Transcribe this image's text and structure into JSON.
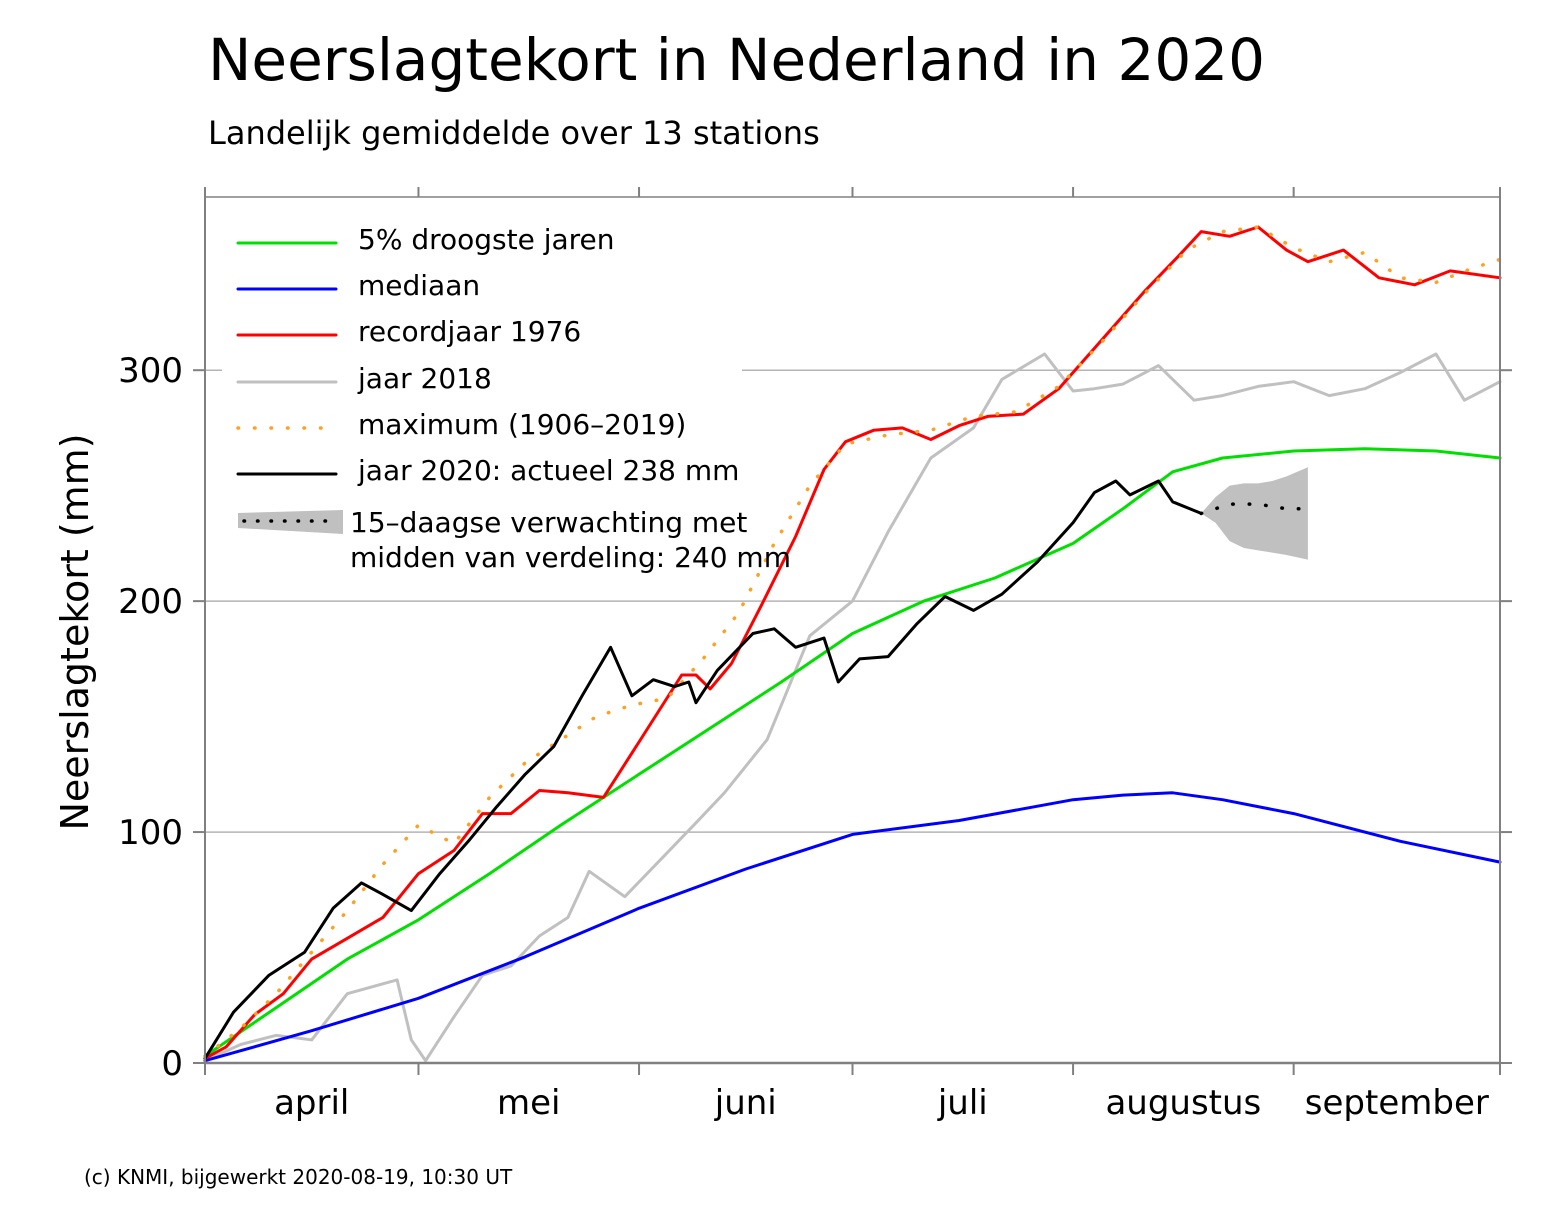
{
  "chart_data": {
    "type": "line",
    "title": "Neerslagtekort in Nederland in 2020",
    "subtitle": "Landelijk gemiddelde over 13 stations",
    "ylabel": "Neerslagtekort (mm)",
    "xlabel": "",
    "ylim": [
      0,
      375
    ],
    "xlim": [
      "2020-04-01",
      "2020-09-30"
    ],
    "yticks": [
      0,
      100,
      200,
      300
    ],
    "month_labels": [
      "april",
      "mei",
      "juni",
      "juli",
      "augustus",
      "september"
    ],
    "month_boundaries": [
      "2020-04-01",
      "2020-05-01",
      "2020-06-01",
      "2020-07-01",
      "2020-08-01",
      "2020-09-01"
    ],
    "grid": "horizontal",
    "legend_position": "top-left",
    "footer": "(c) KNMI, bijgewerkt 2020-08-19, 10:30 UT",
    "series": [
      {
        "name": "5% droogste jaren",
        "color": "#00e000",
        "style": "solid",
        "x": [
          "2020-04-01",
          "2020-04-11",
          "2020-04-21",
          "2020-05-01",
          "2020-05-11",
          "2020-05-21",
          "2020-06-01",
          "2020-06-11",
          "2020-06-21",
          "2020-07-01",
          "2020-07-11",
          "2020-07-21",
          "2020-08-01",
          "2020-08-08",
          "2020-08-15",
          "2020-08-22",
          "2020-09-01",
          "2020-09-11",
          "2020-09-21",
          "2020-09-30"
        ],
        "values": [
          3,
          24,
          45,
          62,
          82,
          103,
          125,
          145,
          165,
          186,
          200,
          210,
          225,
          240,
          256,
          262,
          265,
          266,
          265,
          262
        ]
      },
      {
        "name": "mediaan",
        "color": "#0000ff",
        "style": "solid",
        "x": [
          "2020-04-01",
          "2020-04-16",
          "2020-05-01",
          "2020-05-16",
          "2020-06-01",
          "2020-06-16",
          "2020-07-01",
          "2020-07-16",
          "2020-08-01",
          "2020-08-08",
          "2020-08-15",
          "2020-08-22",
          "2020-09-01",
          "2020-09-16",
          "2020-09-30"
        ],
        "values": [
          1,
          14,
          28,
          46,
          67,
          84,
          99,
          105,
          114,
          116,
          117,
          114,
          108,
          96,
          87
        ]
      },
      {
        "name": "recordjaar 1976",
        "color": "#ff0000",
        "style": "solid",
        "x": [
          "2020-04-01",
          "2020-04-04",
          "2020-04-08",
          "2020-04-12",
          "2020-04-16",
          "2020-04-21",
          "2020-04-26",
          "2020-05-01",
          "2020-05-06",
          "2020-05-10",
          "2020-05-14",
          "2020-05-18",
          "2020-05-22",
          "2020-05-27",
          "2020-06-01",
          "2020-06-07",
          "2020-06-09",
          "2020-06-11",
          "2020-06-14",
          "2020-06-18",
          "2020-06-23",
          "2020-06-27",
          "2020-06-30",
          "2020-07-04",
          "2020-07-08",
          "2020-07-12",
          "2020-07-16",
          "2020-07-20",
          "2020-07-25",
          "2020-07-30",
          "2020-08-05",
          "2020-08-11",
          "2020-08-16",
          "2020-08-19",
          "2020-08-23",
          "2020-08-27",
          "2020-08-31",
          "2020-09-03",
          "2020-09-08",
          "2020-09-13",
          "2020-09-18",
          "2020-09-23",
          "2020-09-30"
        ],
        "values": [
          2,
          7,
          21,
          30,
          45,
          54,
          63,
          82,
          92,
          108,
          108,
          118,
          117,
          115,
          139,
          168,
          168,
          162,
          173,
          197,
          228,
          257,
          269,
          274,
          275,
          270,
          276,
          280,
          281,
          292,
          313,
          334,
          350,
          360,
          358,
          362,
          352,
          347,
          352,
          340,
          337,
          343,
          340
        ]
      },
      {
        "name": "jaar 2018",
        "color": "#c0c0c0",
        "style": "solid",
        "x": [
          "2020-04-01",
          "2020-04-06",
          "2020-04-11",
          "2020-04-16",
          "2020-04-21",
          "2020-04-28",
          "2020-04-30",
          "2020-05-02",
          "2020-05-06",
          "2020-05-10",
          "2020-05-14",
          "2020-05-18",
          "2020-05-22",
          "2020-05-25",
          "2020-05-30",
          "2020-06-04",
          "2020-06-09",
          "2020-06-13",
          "2020-06-19",
          "2020-06-25",
          "2020-07-01",
          "2020-07-06",
          "2020-07-12",
          "2020-07-18",
          "2020-07-22",
          "2020-07-28",
          "2020-08-01",
          "2020-08-04",
          "2020-08-08",
          "2020-08-13",
          "2020-08-18",
          "2020-08-22",
          "2020-08-27",
          "2020-09-01",
          "2020-09-06",
          "2020-09-11",
          "2020-09-16",
          "2020-09-21",
          "2020-09-25",
          "2020-09-30"
        ],
        "values": [
          1,
          8,
          12,
          10,
          30,
          36,
          10,
          1,
          20,
          38,
          42,
          55,
          63,
          83,
          72,
          88,
          104,
          117,
          140,
          185,
          200,
          230,
          262,
          275,
          296,
          307,
          291,
          292,
          294,
          302,
          287,
          289,
          293,
          295,
          289,
          292,
          299,
          307,
          287,
          295
        ]
      },
      {
        "name": "maximum (1906–2019)",
        "color": "#ffa020",
        "style": "dotted",
        "x": [
          "2020-04-01",
          "2020-04-06",
          "2020-04-11",
          "2020-04-16",
          "2020-04-21",
          "2020-04-26",
          "2020-05-01",
          "2020-05-06",
          "2020-05-11",
          "2020-05-16",
          "2020-05-21",
          "2020-05-26",
          "2020-05-31",
          "2020-06-05",
          "2020-06-10",
          "2020-06-15",
          "2020-06-20",
          "2020-06-25",
          "2020-06-30",
          "2020-07-06",
          "2020-07-12",
          "2020-07-18",
          "2020-07-24",
          "2020-07-30",
          "2020-08-05",
          "2020-08-11",
          "2020-08-17",
          "2020-08-22",
          "2020-08-27",
          "2020-09-01",
          "2020-09-06",
          "2020-09-11",
          "2020-09-16",
          "2020-09-21",
          "2020-09-26",
          "2020-09-30"
        ],
        "values": [
          3,
          15,
          30,
          48,
          66,
          86,
          103,
          95,
          115,
          130,
          140,
          150,
          155,
          158,
          175,
          195,
          225,
          250,
          268,
          272,
          274,
          280,
          282,
          293,
          312,
          333,
          352,
          360,
          362,
          353,
          347,
          351,
          340,
          338,
          344,
          348
        ]
      },
      {
        "name": "jaar 2020: actueel 238 mm",
        "color": "#000000",
        "style": "solid",
        "x": [
          "2020-04-01",
          "2020-04-05",
          "2020-04-10",
          "2020-04-15",
          "2020-04-19",
          "2020-04-23",
          "2020-04-26",
          "2020-04-30",
          "2020-05-04",
          "2020-05-08",
          "2020-05-12",
          "2020-05-16",
          "2020-05-20",
          "2020-05-24",
          "2020-05-28",
          "2020-05-31",
          "2020-06-03",
          "2020-06-06",
          "2020-06-08",
          "2020-06-09",
          "2020-06-12",
          "2020-06-17",
          "2020-06-20",
          "2020-06-23",
          "2020-06-27",
          "2020-06-29",
          "2020-07-02",
          "2020-07-06",
          "2020-07-10",
          "2020-07-14",
          "2020-07-18",
          "2020-07-22",
          "2020-07-27",
          "2020-08-01",
          "2020-08-04",
          "2020-08-07",
          "2020-08-09",
          "2020-08-13",
          "2020-08-15",
          "2020-08-19"
        ],
        "values": [
          2,
          22,
          38,
          48,
          67,
          78,
          73,
          66,
          82,
          96,
          111,
          125,
          137,
          159,
          180,
          159,
          166,
          163,
          165,
          156,
          170,
          186,
          188,
          180,
          184,
          165,
          175,
          176,
          190,
          202,
          196,
          203,
          217,
          234,
          247,
          252,
          246,
          252,
          243,
          238
        ]
      },
      {
        "name": "15-daagse verwachting met midden van verdeling: 240 mm",
        "color": "#000000",
        "style": "dotted",
        "x": [
          "2020-08-19",
          "2020-08-23",
          "2020-08-27",
          "2020-08-31",
          "2020-09-03"
        ],
        "values": [
          238,
          242,
          242,
          240,
          240
        ]
      }
    ],
    "forecast_band": {
      "name": "15-daagse verwachting met midden van verdeling: 240 mm",
      "color": "#c0c0c0",
      "x": [
        "2020-08-19",
        "2020-08-21",
        "2020-08-23",
        "2020-08-25",
        "2020-08-27",
        "2020-08-29",
        "2020-08-31",
        "2020-09-03"
      ],
      "lower": [
        238,
        234,
        226,
        223,
        222,
        221,
        220,
        218
      ],
      "upper": [
        238,
        245,
        250,
        251,
        251,
        252,
        254,
        258
      ]
    },
    "legend": [
      {
        "label": "5% droogste jaren",
        "color": "#00e000",
        "style": "solid"
      },
      {
        "label": "mediaan",
        "color": "#0000ff",
        "style": "solid"
      },
      {
        "label": "recordjaar 1976",
        "color": "#ff0000",
        "style": "solid"
      },
      {
        "label": "jaar 2018",
        "color": "#c0c0c0",
        "style": "solid"
      },
      {
        "label": "maximum (1906–2019)",
        "color": "#ffa020",
        "style": "dotted"
      },
      {
        "label": "jaar 2020: actueel 238 mm",
        "color": "#000000",
        "style": "solid"
      },
      {
        "label": "15–daagse verwachting met",
        "label2": "midden van verdeling: 240 mm",
        "color": "#c0c0c0",
        "style": "band"
      }
    ]
  }
}
